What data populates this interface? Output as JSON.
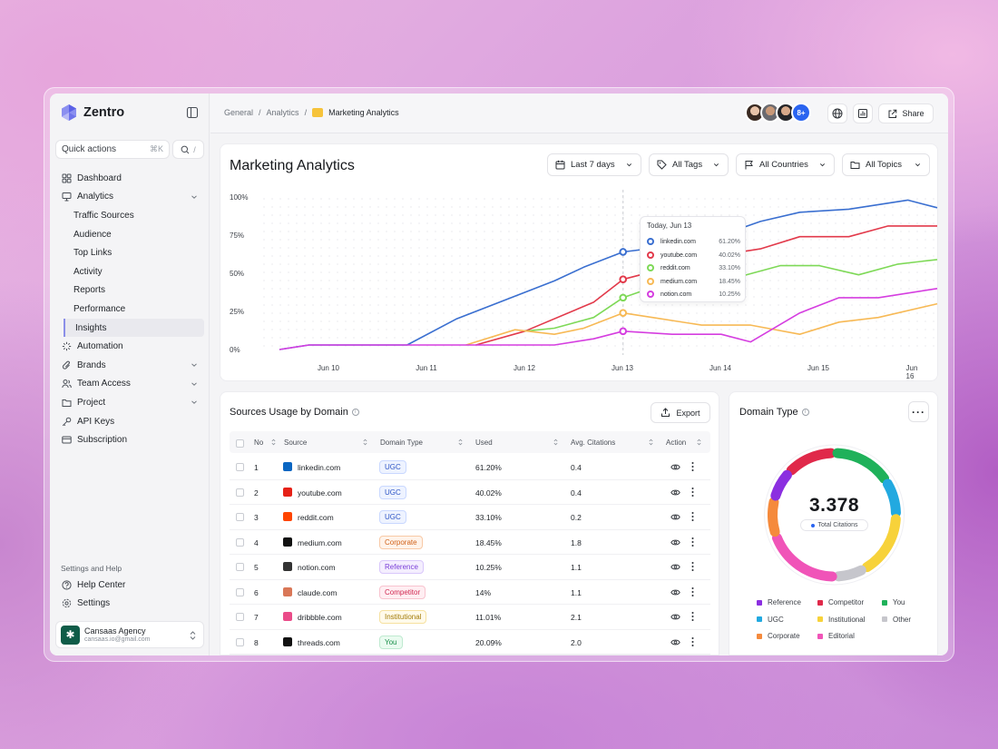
{
  "app": {
    "brand": "Zentro"
  },
  "sidebar": {
    "quick_actions": {
      "label": "Quick actions",
      "shortcut": "⌘K"
    },
    "search_shortcut": "/",
    "items": [
      {
        "label": "Dashboard",
        "icon": "grid-icon"
      },
      {
        "label": "Analytics",
        "icon": "monitor-icon",
        "expanded": true
      },
      {
        "label": "Traffic Sources",
        "sub": true
      },
      {
        "label": "Audience",
        "sub": true
      },
      {
        "label": "Top Links",
        "sub": true
      },
      {
        "label": "Activity",
        "sub": true
      },
      {
        "label": "Reports",
        "sub": true
      },
      {
        "label": "Performance",
        "sub": true
      },
      {
        "label": "Insights",
        "sub": true,
        "active": true
      },
      {
        "label": "Automation",
        "icon": "loader-icon"
      },
      {
        "label": "Brands",
        "icon": "paperclip-icon"
      },
      {
        "label": "Team Access",
        "icon": "users-icon"
      },
      {
        "label": "Project",
        "icon": "folder-icon"
      },
      {
        "label": "API Keys",
        "icon": "key-icon"
      },
      {
        "label": "Subscription",
        "icon": "card-icon"
      }
    ],
    "settings_title": "Settings and Help",
    "help": "Help Center",
    "settings": "Settings",
    "account": {
      "name": "Cansaas Agency",
      "email": "cansaas.io@gmail.com"
    }
  },
  "topbar": {
    "breadcrumbs": [
      "General",
      "Analytics",
      "Marketing Analytics"
    ],
    "avatars_more": "8+",
    "share": "Share"
  },
  "chart_card": {
    "title": "Marketing Analytics",
    "filters": {
      "date": "Last 7 days",
      "tags": "All Tags",
      "countries": "All Countries",
      "topics": "All Topics"
    },
    "tooltip_title": "Today, Jun 13"
  },
  "chart_data": {
    "type": "line",
    "x": [
      "Jun 9.5",
      "Jun 10",
      "Jun 10.5",
      "Jun 11",
      "Jun 11.5",
      "Jun 12",
      "Jun 12.5",
      "Jun 13",
      "Jun 13.5",
      "Jun 14",
      "Jun 14.5",
      "Jun 15",
      "Jun 15.5",
      "Jun 16"
    ],
    "xtick_labels": [
      "Jun 10",
      "Jun 11",
      "Jun 12",
      "Jun 13",
      "Jun 14",
      "Jun 15",
      "Jun 16"
    ],
    "yticks": [
      "100%",
      "75%",
      "50%",
      "25%",
      "0%"
    ],
    "ylim": [
      0,
      100
    ],
    "grid": "dotted",
    "series": [
      {
        "name": "linkedin.com",
        "color": "#3a6fd0",
        "value_label": "61.20%",
        "points": [
          [
            9.5,
            0
          ],
          [
            9.8,
            3
          ],
          [
            10.8,
            3
          ],
          [
            11.3,
            20
          ],
          [
            12.3,
            45
          ],
          [
            12.6,
            54
          ],
          [
            13,
            64
          ],
          [
            13.5,
            68
          ],
          [
            14,
            75
          ],
          [
            14.4,
            84
          ],
          [
            14.8,
            90
          ],
          [
            15.3,
            92
          ],
          [
            15.9,
            98
          ],
          [
            16.2,
            93
          ]
        ]
      },
      {
        "name": "youtube.com",
        "color": "#e23a4b",
        "value_label": "40.02%",
        "points": [
          [
            11.5,
            3
          ],
          [
            12,
            12
          ],
          [
            12.7,
            31
          ],
          [
            13,
            46
          ],
          [
            13.3,
            51
          ],
          [
            13.6,
            52
          ],
          [
            14,
            62
          ],
          [
            14.4,
            66
          ],
          [
            14.8,
            74
          ],
          [
            15.3,
            74
          ],
          [
            15.7,
            81
          ],
          [
            16.2,
            81
          ]
        ]
      },
      {
        "name": "reddit.com",
        "color": "#7ed957",
        "value_label": "33.10%",
        "points": [
          [
            12,
            12
          ],
          [
            12.3,
            14
          ],
          [
            12.7,
            21
          ],
          [
            13,
            34
          ],
          [
            13.4,
            43
          ],
          [
            13.8,
            46
          ],
          [
            14.2,
            48
          ],
          [
            14.6,
            55
          ],
          [
            15,
            55
          ],
          [
            15.4,
            49
          ],
          [
            15.8,
            56
          ],
          [
            16.2,
            59
          ]
        ]
      },
      {
        "name": "medium.com",
        "color": "#f7b955",
        "value_label": "18.45%",
        "points": [
          [
            11.4,
            3
          ],
          [
            11.9,
            13
          ],
          [
            12.3,
            10
          ],
          [
            12.6,
            14
          ],
          [
            13,
            24
          ],
          [
            13.3,
            21
          ],
          [
            13.8,
            16
          ],
          [
            14.3,
            16
          ],
          [
            14.8,
            10
          ],
          [
            15.2,
            18
          ],
          [
            15.6,
            21
          ],
          [
            16.2,
            30
          ]
        ]
      },
      {
        "name": "notion.com",
        "color": "#d53ee0",
        "value_label": "10.25%",
        "points": [
          [
            9.5,
            0
          ],
          [
            9.8,
            3
          ],
          [
            12.3,
            3
          ],
          [
            12.7,
            7
          ],
          [
            13,
            12
          ],
          [
            13.5,
            10
          ],
          [
            14,
            10
          ],
          [
            14.3,
            5
          ],
          [
            14.8,
            24
          ],
          [
            15.2,
            34
          ],
          [
            15.6,
            34
          ],
          [
            16.2,
            40
          ]
        ]
      }
    ]
  },
  "table": {
    "title": "Sources Usage by Domain",
    "export": "Export",
    "headers": [
      "No",
      "Source",
      "Domain Type",
      "Used",
      "Avg. Citations",
      "Action"
    ],
    "rows": [
      {
        "no": "1",
        "source": "linkedin.com",
        "type": "UGC",
        "used": "61.20%",
        "avg": "0.4",
        "icon_color": "#0a66c2"
      },
      {
        "no": "2",
        "source": "youtube.com",
        "type": "UGC",
        "used": "40.02%",
        "avg": "0.4",
        "icon_color": "#e62117"
      },
      {
        "no": "3",
        "source": "reddit.com",
        "type": "UGC",
        "used": "33.10%",
        "avg": "0.2",
        "icon_color": "#ff4500"
      },
      {
        "no": "4",
        "source": "medium.com",
        "type": "Corporate",
        "used": "18.45%",
        "avg": "1.8",
        "icon_color": "#111111"
      },
      {
        "no": "5",
        "source": "notion.com",
        "type": "Reference",
        "used": "10.25%",
        "avg": "1.1",
        "icon_color": "#333333"
      },
      {
        "no": "6",
        "source": "claude.com",
        "type": "Competitor",
        "used": "14%",
        "avg": "1.1",
        "icon_color": "#d97757"
      },
      {
        "no": "7",
        "source": "dribbble.com",
        "type": "Institutional",
        "used": "11.01%",
        "avg": "2.1",
        "icon_color": "#ea4c89"
      },
      {
        "no": "8",
        "source": "threads.com",
        "type": "You",
        "used": "20.09%",
        "avg": "2.0",
        "icon_color": "#111111"
      }
    ]
  },
  "domain_type": {
    "title": "Domain Type",
    "value": "3.378",
    "value_label": "Total Citations",
    "legend": [
      {
        "label": "Reference",
        "color": "#8b2fe0"
      },
      {
        "label": "Competitor",
        "color": "#e0294a"
      },
      {
        "label": "You",
        "color": "#1fb15a"
      },
      {
        "label": "UGC",
        "color": "#22a9e0"
      },
      {
        "label": "Institutional",
        "color": "#f7d23a"
      },
      {
        "label": "Other",
        "color": "#c6c6cc"
      },
      {
        "label": "Corporate",
        "color": "#f58a3c"
      },
      {
        "label": "Editorial",
        "color": "#f054b8"
      }
    ]
  }
}
